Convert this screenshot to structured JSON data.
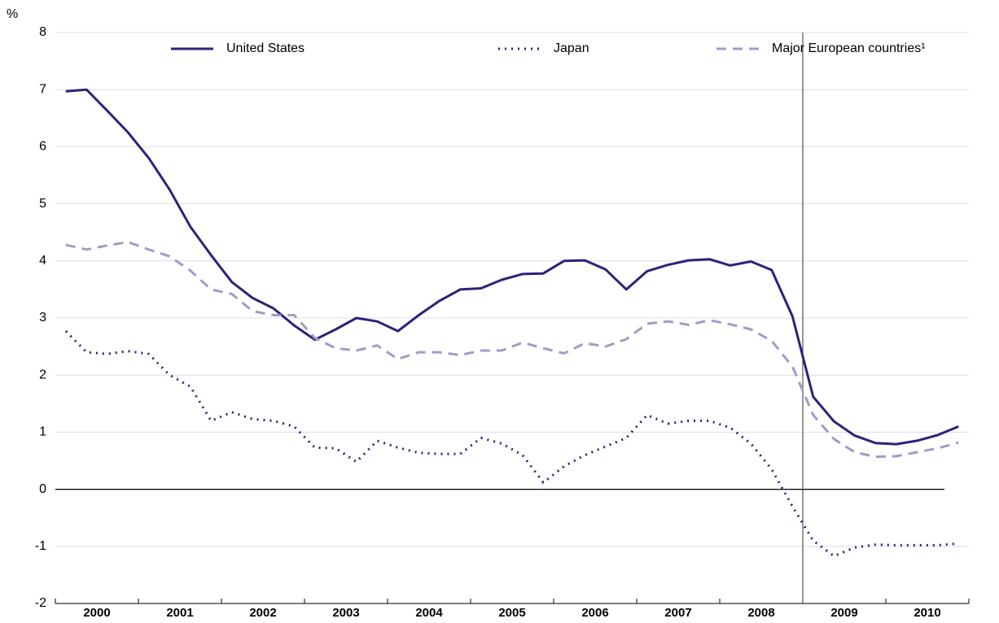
{
  "chart_data": {
    "type": "line",
    "y_unit": "%",
    "categories": [
      null,
      "2000",
      null,
      null,
      null,
      "2001",
      null,
      null,
      null,
      "2002",
      null,
      null,
      null,
      "2003",
      null,
      null,
      null,
      "2004",
      null,
      null,
      null,
      "2005",
      null,
      null,
      null,
      "2006",
      null,
      null,
      null,
      "2007",
      null,
      null,
      null,
      "2008",
      null,
      null,
      null,
      "2009",
      null,
      null,
      null,
      "2010",
      null,
      null
    ],
    "series": [
      {
        "name": "United States",
        "color": "#2e2278",
        "style": "solid",
        "values": [
          6.97,
          7.0,
          6.63,
          6.25,
          5.8,
          5.25,
          4.6,
          4.1,
          3.63,
          3.35,
          3.17,
          2.87,
          2.62,
          2.8,
          3.0,
          2.94,
          2.77,
          3.05,
          3.3,
          3.5,
          3.52,
          3.67,
          3.77,
          3.78,
          4.0,
          4.01,
          3.85,
          3.5,
          3.82,
          3.93,
          4.01,
          4.03,
          3.92,
          3.99,
          3.84,
          3.03,
          1.62,
          1.19,
          0.94,
          0.81,
          0.79,
          0.85,
          0.95,
          1.1
        ]
      },
      {
        "name": "Japan",
        "color": "#2e2278",
        "style": "dotted",
        "values": [
          2.77,
          2.4,
          2.37,
          2.42,
          2.37,
          2.0,
          1.8,
          1.2,
          1.35,
          1.23,
          1.2,
          1.1,
          0.73,
          0.72,
          0.48,
          0.85,
          0.73,
          0.64,
          0.62,
          0.62,
          0.9,
          0.8,
          0.6,
          0.12,
          0.4,
          0.6,
          0.75,
          0.9,
          1.3,
          1.15,
          1.2,
          1.2,
          1.08,
          0.8,
          0.35,
          -0.3,
          -0.9,
          -1.17,
          -1.02,
          -0.97,
          -0.98,
          -0.98,
          -0.98,
          -0.95
        ]
      },
      {
        "name": "Major European countries¹",
        "color": "#a09cc8",
        "style": "dashed",
        "values": [
          4.28,
          4.2,
          4.27,
          4.33,
          4.2,
          4.08,
          3.83,
          3.5,
          3.42,
          3.12,
          3.05,
          3.05,
          2.65,
          2.47,
          2.43,
          2.52,
          2.28,
          2.4,
          2.4,
          2.35,
          2.43,
          2.43,
          2.57,
          2.47,
          2.38,
          2.56,
          2.5,
          2.63,
          2.9,
          2.94,
          2.88,
          2.96,
          2.89,
          2.8,
          2.6,
          2.15,
          1.3,
          0.88,
          0.65,
          0.57,
          0.58,
          0.65,
          0.72,
          0.82
        ]
      }
    ],
    "ylim": [
      -2,
      8
    ],
    "yticks": [
      -2,
      -1,
      0,
      1,
      2,
      3,
      4,
      5,
      6,
      7,
      8
    ],
    "grid": true
  }
}
